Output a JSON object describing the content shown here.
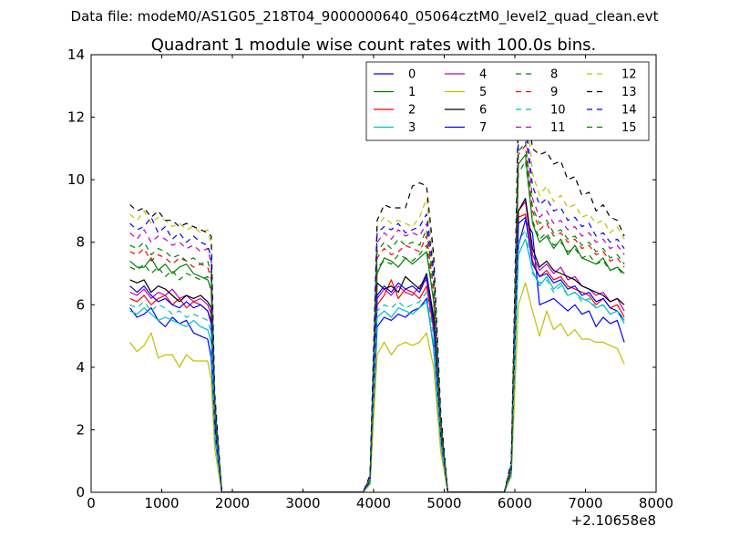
{
  "suptitle": "Data file: modeM0/AS1G05_218T04_9000000640_05064cztM0_level2_quad_clean.evt",
  "chart_data": {
    "type": "line",
    "title": "Quadrant 1 module wise count rates with 100.0s bins.",
    "xlabel": "",
    "ylabel": "",
    "xlim": [
      0,
      8000
    ],
    "ylim": [
      0,
      14
    ],
    "x_offset_label": "+2.10658e8",
    "xticks": [
      "0",
      "1000",
      "2000",
      "3000",
      "4000",
      "5000",
      "6000",
      "7000",
      "8000"
    ],
    "yticks": [
      "0",
      "2",
      "4",
      "6",
      "8",
      "10",
      "12",
      "14"
    ],
    "legend_position": "upper-right",
    "legend_columns": 4,
    "x": [
      550,
      650,
      750,
      850,
      950,
      1050,
      1150,
      1250,
      1350,
      1450,
      1550,
      1650,
      1700,
      1750,
      1850,
      1950,
      2050,
      2150,
      2250,
      2350,
      2450,
      2550,
      2650,
      2750,
      2850,
      2950,
      3050,
      3150,
      3250,
      3350,
      3450,
      3550,
      3650,
      3750,
      3850,
      3950,
      4050,
      4150,
      4250,
      4350,
      4450,
      4550,
      4650,
      4750,
      4850,
      4950,
      5050,
      5150,
      5250,
      5350,
      5450,
      5550,
      5650,
      5750,
      5850,
      5950,
      6050,
      6150,
      6250,
      6350,
      6450,
      6550,
      6650,
      6750,
      6850,
      6950,
      7050,
      7150,
      7250,
      7350,
      7450,
      7550
    ],
    "series": [
      {
        "name": "0",
        "color": "#0000ff",
        "dash": "solid",
        "values": [
          5.9,
          5.6,
          5.7,
          5.9,
          5.5,
          5.3,
          5.6,
          5.4,
          5.5,
          5.1,
          5.0,
          4.9,
          4.3,
          1.8,
          0,
          0,
          0,
          0,
          0,
          0,
          0,
          0,
          0,
          0,
          0,
          0,
          0,
          0,
          0,
          0,
          0,
          0,
          0,
          0,
          0,
          0.3,
          5.3,
          5.6,
          5.5,
          5.7,
          5.6,
          5.8,
          5.9,
          6.2,
          4.6,
          1.6,
          0,
          0,
          0,
          0,
          0,
          0,
          0,
          0,
          0,
          0.6,
          7.9,
          8.7,
          8.3,
          6.0,
          6.1,
          6.2,
          6.0,
          5.8,
          6.0,
          5.7,
          5.8,
          5.3,
          5.6,
          5.4,
          5.5,
          4.8
        ]
      },
      {
        "name": "1",
        "color": "#008000",
        "dash": "solid",
        "values": [
          7.4,
          7.2,
          7.2,
          7.5,
          7.1,
          7.3,
          7.0,
          7.2,
          7.3,
          7.0,
          6.9,
          6.8,
          6.5,
          2.6,
          0,
          0,
          0,
          0,
          0,
          0,
          0,
          0,
          0,
          0,
          0,
          0,
          0,
          0,
          0,
          0,
          0,
          0,
          0,
          0,
          0,
          0.4,
          7.0,
          7.5,
          7.4,
          7.2,
          7.5,
          7.3,
          7.5,
          7.7,
          6.1,
          2.1,
          0,
          0,
          0,
          0,
          0,
          0,
          0,
          0,
          0,
          0.8,
          10.5,
          10.8,
          8.6,
          8.0,
          8.2,
          7.8,
          8.1,
          7.6,
          7.9,
          7.5,
          7.4,
          7.3,
          7.5,
          7.1,
          7.2,
          7.0
        ]
      },
      {
        "name": "2",
        "color": "#ff0000",
        "dash": "solid",
        "values": [
          6.2,
          6.1,
          6.3,
          6.0,
          6.2,
          6.3,
          6.0,
          6.2,
          5.9,
          6.1,
          6.0,
          5.8,
          5.5,
          2.2,
          0,
          0,
          0,
          0,
          0,
          0,
          0,
          0,
          0,
          0,
          0,
          0,
          0,
          0,
          0,
          0,
          0,
          0,
          0,
          0,
          0,
          0.35,
          6.0,
          6.3,
          6.8,
          6.2,
          6.5,
          6.4,
          6.2,
          6.6,
          5.2,
          1.8,
          0,
          0,
          0,
          0,
          0,
          0,
          0,
          0,
          0,
          0.7,
          8.8,
          8.9,
          7.4,
          6.9,
          7.1,
          6.8,
          6.9,
          6.6,
          6.5,
          6.4,
          6.3,
          6.0,
          6.2,
          5.9,
          6.0,
          5.6
        ]
      },
      {
        "name": "3",
        "color": "#00bfbf",
        "dash": "solid",
        "values": [
          5.8,
          5.7,
          5.9,
          5.7,
          5.5,
          5.6,
          5.5,
          5.4,
          5.3,
          5.5,
          5.3,
          5.2,
          4.8,
          1.9,
          0,
          0,
          0,
          0,
          0,
          0,
          0,
          0,
          0,
          0,
          0,
          0,
          0,
          0,
          0,
          0,
          0,
          0,
          0,
          0,
          0,
          0.3,
          5.6,
          5.8,
          5.6,
          5.9,
          5.8,
          5.7,
          5.9,
          6.1,
          4.7,
          1.6,
          0,
          0,
          0,
          0,
          0,
          0,
          0,
          0,
          0,
          0.6,
          7.6,
          8.1,
          7.1,
          6.6,
          6.9,
          6.5,
          6.7,
          6.3,
          6.4,
          6.2,
          6.1,
          5.9,
          6.0,
          5.7,
          5.8,
          5.4
        ]
      },
      {
        "name": "4",
        "color": "#bf00bf",
        "dash": "solid",
        "values": [
          6.4,
          6.3,
          6.5,
          6.2,
          6.4,
          6.3,
          6.5,
          6.2,
          6.3,
          6.1,
          6.2,
          6.0,
          5.7,
          2.3,
          0,
          0,
          0,
          0,
          0,
          0,
          0,
          0,
          0,
          0,
          0,
          0,
          0,
          0,
          0,
          0,
          0,
          0,
          0,
          0,
          0,
          0.35,
          6.2,
          6.5,
          6.3,
          6.6,
          6.4,
          6.3,
          6.6,
          6.8,
          5.4,
          1.9,
          0,
          0,
          0,
          0,
          0,
          0,
          0,
          0,
          0,
          0.7,
          9.0,
          9.3,
          7.6,
          7.1,
          7.3,
          7.0,
          7.2,
          6.8,
          6.9,
          6.6,
          6.5,
          6.3,
          6.4,
          6.1,
          6.2,
          5.8
        ]
      },
      {
        "name": "5",
        "color": "#bfbf00",
        "dash": "solid",
        "values": [
          4.8,
          4.5,
          4.7,
          5.1,
          4.3,
          4.4,
          4.4,
          4.0,
          4.4,
          4.2,
          4.2,
          4.2,
          3.6,
          1.4,
          0,
          0,
          0,
          0,
          0,
          0,
          0,
          0,
          0,
          0,
          0,
          0,
          0,
          0,
          0,
          0,
          0,
          0,
          0,
          0,
          0,
          0.25,
          4.4,
          4.8,
          4.4,
          4.7,
          4.8,
          4.7,
          4.8,
          5.1,
          4.0,
          1.3,
          0,
          0,
          0,
          0,
          0,
          0,
          0,
          0,
          0,
          0.5,
          6.0,
          6.7,
          5.8,
          5.0,
          5.8,
          5.2,
          5.4,
          5.0,
          5.2,
          4.9,
          4.9,
          4.8,
          4.8,
          4.7,
          4.6,
          4.1
        ]
      },
      {
        "name": "6",
        "color": "#000000",
        "dash": "solid",
        "values": [
          6.8,
          6.7,
          6.8,
          6.4,
          6.6,
          6.5,
          6.3,
          6.1,
          6.3,
          6.2,
          6.3,
          6.1,
          5.9,
          2.4,
          0,
          0,
          0,
          0,
          0,
          0,
          0,
          0,
          0,
          0,
          0,
          0,
          0,
          0,
          0,
          0,
          0,
          0,
          0,
          0,
          0,
          0.4,
          6.7,
          6.5,
          6.6,
          6.4,
          6.9,
          6.7,
          6.5,
          7.0,
          5.6,
          2.0,
          0,
          0,
          0,
          0,
          0,
          0,
          0,
          0,
          0,
          0.7,
          9.0,
          9.4,
          7.8,
          7.2,
          7.4,
          7.1,
          7.0,
          6.9,
          6.8,
          6.6,
          6.5,
          6.4,
          6.3,
          6.1,
          6.2,
          6.0
        ]
      },
      {
        "name": "7",
        "color": "#0000ff",
        "dash": "solid",
        "values": [
          6.6,
          6.4,
          6.6,
          6.3,
          6.1,
          6.2,
          6.0,
          5.9,
          6.1,
          5.9,
          6.0,
          5.8,
          5.4,
          2.1,
          0,
          0,
          0,
          0,
          0,
          0,
          0,
          0,
          0,
          0,
          0,
          0,
          0,
          0,
          0,
          0,
          0,
          0,
          0,
          0,
          0,
          0.35,
          6.3,
          6.6,
          6.4,
          6.7,
          6.5,
          6.6,
          6.4,
          6.9,
          5.4,
          1.8,
          0,
          0,
          0,
          0,
          0,
          0,
          0,
          0,
          0,
          0.7,
          8.6,
          8.8,
          7.3,
          6.9,
          7.0,
          6.7,
          6.8,
          6.5,
          6.6,
          6.3,
          6.4,
          6.1,
          6.2,
          5.9,
          5.8,
          5.5
        ]
      },
      {
        "name": "8",
        "color": "#008000",
        "dash": "dashed",
        "values": [
          7.2,
          7.1,
          7.3,
          7.0,
          7.2,
          6.9,
          7.1,
          6.8,
          7.0,
          6.9,
          6.8,
          6.9,
          6.4,
          2.6,
          0,
          0,
          0,
          0,
          0,
          0,
          0,
          0,
          0,
          0,
          0,
          0,
          0,
          0,
          0,
          0,
          0,
          0,
          0,
          0,
          0,
          0.4,
          7.2,
          7.4,
          7.3,
          7.6,
          7.5,
          7.4,
          7.6,
          7.9,
          6.2,
          2.1,
          0,
          0,
          0,
          0,
          0,
          0,
          0,
          0,
          0,
          0.8,
          10.2,
          10.6,
          8.7,
          8.1,
          8.3,
          7.9,
          8.0,
          7.7,
          7.8,
          7.5,
          7.6,
          7.3,
          7.4,
          7.1,
          7.2,
          6.9
        ]
      },
      {
        "name": "9",
        "color": "#ff0000",
        "dash": "dashed",
        "values": [
          7.7,
          7.6,
          7.8,
          7.4,
          7.6,
          7.5,
          7.3,
          7.5,
          7.4,
          7.2,
          7.3,
          7.2,
          6.8,
          2.7,
          0,
          0,
          0,
          0,
          0,
          0,
          0,
          0,
          0,
          0,
          0,
          0,
          0,
          0,
          0,
          0,
          0,
          0,
          0,
          0,
          0,
          0.4,
          7.5,
          7.8,
          7.6,
          7.7,
          7.9,
          7.8,
          7.7,
          8.2,
          6.5,
          2.2,
          0,
          0,
          0,
          0,
          0,
          0,
          0,
          0,
          0,
          0.8,
          10.8,
          11.1,
          9.0,
          8.4,
          8.6,
          8.2,
          8.3,
          8.0,
          8.1,
          7.8,
          7.9,
          7.6,
          7.7,
          7.4,
          7.5,
          7.2
        ]
      },
      {
        "name": "10",
        "color": "#00bfbf",
        "dash": "dashed",
        "values": [
          6.0,
          5.9,
          6.1,
          5.8,
          6.0,
          5.9,
          5.7,
          5.8,
          5.6,
          5.7,
          5.6,
          5.5,
          5.1,
          2.0,
          0,
          0,
          0,
          0,
          0,
          0,
          0,
          0,
          0,
          0,
          0,
          0,
          0,
          0,
          0,
          0,
          0,
          0,
          0,
          0,
          0,
          0.3,
          5.8,
          6.0,
          5.9,
          6.1,
          5.9,
          6.0,
          6.1,
          6.4,
          5.0,
          1.7,
          0,
          0,
          0,
          0,
          0,
          0,
          0,
          0,
          0,
          0.6,
          8.0,
          8.4,
          7.0,
          6.7,
          6.8,
          6.4,
          6.6,
          6.3,
          6.4,
          6.1,
          6.2,
          5.9,
          6.0,
          5.7,
          5.8,
          5.5
        ]
      },
      {
        "name": "11",
        "color": "#bf00bf",
        "dash": "dashed",
        "values": [
          8.3,
          8.1,
          8.4,
          8.0,
          8.2,
          8.1,
          7.9,
          8.0,
          7.8,
          7.9,
          7.7,
          7.8,
          7.3,
          2.9,
          0,
          0,
          0,
          0,
          0,
          0,
          0,
          0,
          0,
          0,
          0,
          0,
          0,
          0,
          0,
          0,
          0,
          0,
          0,
          0,
          0,
          0.45,
          8.0,
          8.3,
          8.1,
          8.4,
          8.2,
          8.3,
          8.2,
          8.6,
          6.9,
          2.3,
          0,
          0,
          0,
          0,
          0,
          0,
          0,
          0,
          0,
          0.9,
          11.3,
          11.6,
          9.4,
          8.8,
          9.0,
          8.6,
          8.7,
          8.4,
          8.5,
          8.2,
          8.3,
          8.0,
          8.1,
          7.8,
          7.9,
          7.6
        ]
      },
      {
        "name": "12",
        "color": "#bfbf00",
        "dash": "dashed",
        "values": [
          8.9,
          8.7,
          9.0,
          8.6,
          8.8,
          8.7,
          8.5,
          8.6,
          8.4,
          8.5,
          8.3,
          8.4,
          7.9,
          3.1,
          0,
          0,
          0,
          0,
          0,
          0,
          0,
          0,
          0,
          0,
          0,
          0,
          0,
          0,
          0,
          0,
          0,
          0,
          0,
          0,
          0,
          0.5,
          8.5,
          8.8,
          8.6,
          8.7,
          8.6,
          8.5,
          8.8,
          9.4,
          7.3,
          2.5,
          0,
          0,
          0,
          0,
          0,
          0,
          0,
          0,
          0,
          0.9,
          11.8,
          12.8,
          10.2,
          9.5,
          9.8,
          9.3,
          9.5,
          9.1,
          9.2,
          8.8,
          8.9,
          8.6,
          8.7,
          8.3,
          8.5,
          8.1
        ]
      },
      {
        "name": "13",
        "color": "#000000",
        "dash": "dashed",
        "values": [
          9.2,
          9.0,
          9.1,
          8.8,
          9.0,
          8.7,
          8.7,
          8.5,
          8.6,
          8.5,
          8.4,
          8.3,
          8.2,
          3.2,
          0,
          0,
          0,
          0,
          0,
          0,
          0,
          0,
          0,
          0,
          0,
          0,
          0,
          0,
          0,
          0,
          0,
          0,
          0,
          0,
          0,
          0.55,
          8.7,
          9.2,
          9.1,
          9.1,
          9.1,
          9.8,
          9.9,
          9.8,
          7.6,
          2.6,
          0,
          0,
          0,
          0,
          0,
          0,
          0,
          0,
          0,
          1.0,
          12.3,
          12.8,
          11.0,
          10.8,
          10.9,
          10.5,
          10.6,
          10.0,
          10.1,
          9.5,
          9.6,
          9.0,
          9.2,
          8.8,
          8.7,
          8.2
        ]
      },
      {
        "name": "14",
        "color": "#0000ff",
        "dash": "dashed",
        "values": [
          8.6,
          8.4,
          8.5,
          8.8,
          8.3,
          8.5,
          8.1,
          8.3,
          8.0,
          8.2,
          8.0,
          7.9,
          7.5,
          3.0,
          0,
          0,
          0,
          0,
          0,
          0,
          0,
          0,
          0,
          0,
          0,
          0,
          0,
          0,
          0,
          0,
          0,
          0,
          0,
          0,
          0,
          0.5,
          8.3,
          8.5,
          8.4,
          8.6,
          8.3,
          8.4,
          8.5,
          8.9,
          7.1,
          2.4,
          0,
          0,
          0,
          0,
          0,
          0,
          0,
          0,
          0,
          0.9,
          11.5,
          11.9,
          9.8,
          9.2,
          9.4,
          9.0,
          9.1,
          8.7,
          8.8,
          8.5,
          8.6,
          8.2,
          8.3,
          8.0,
          8.1,
          7.8
        ]
      },
      {
        "name": "15",
        "color": "#008000",
        "dash": "dashed",
        "values": [
          7.9,
          7.8,
          8.0,
          7.6,
          7.8,
          7.7,
          7.5,
          7.6,
          7.4,
          7.5,
          7.3,
          7.4,
          7.0,
          2.8,
          0,
          0,
          0,
          0,
          0,
          0,
          0,
          0,
          0,
          0,
          0,
          0,
          0,
          0,
          0,
          0,
          0,
          0,
          0,
          0,
          0,
          0.45,
          7.7,
          8.0,
          7.8,
          8.1,
          7.9,
          8.0,
          7.9,
          8.4,
          6.7,
          2.3,
          0,
          0,
          0,
          0,
          0,
          0,
          0,
          0,
          0,
          0.85,
          10.9,
          11.2,
          9.1,
          8.6,
          8.7,
          8.3,
          8.4,
          8.1,
          8.2,
          7.9,
          8.0,
          7.7,
          7.8,
          7.5,
          7.6,
          7.3
        ]
      }
    ]
  }
}
